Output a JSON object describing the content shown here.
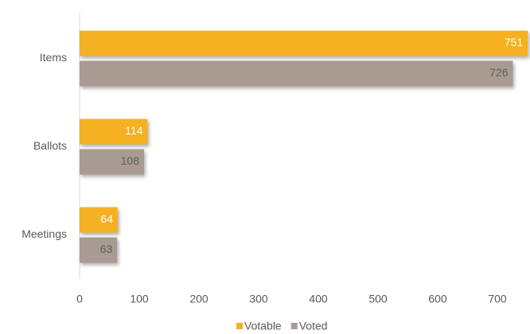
{
  "chart_data": {
    "type": "hbar",
    "categories": [
      "Items",
      "Ballots",
      "Meetings"
    ],
    "series": [
      {
        "name": "Votable",
        "color": "#f5b120",
        "values": [
          751,
          114,
          64
        ]
      },
      {
        "name": "Voted",
        "color": "#a99a92",
        "values": [
          726,
          108,
          63
        ]
      }
    ],
    "xlim": [
      0,
      750
    ],
    "xticks": [
      0,
      100,
      200,
      300,
      400,
      500,
      600,
      700
    ],
    "grid": false,
    "legend": "bottom"
  }
}
